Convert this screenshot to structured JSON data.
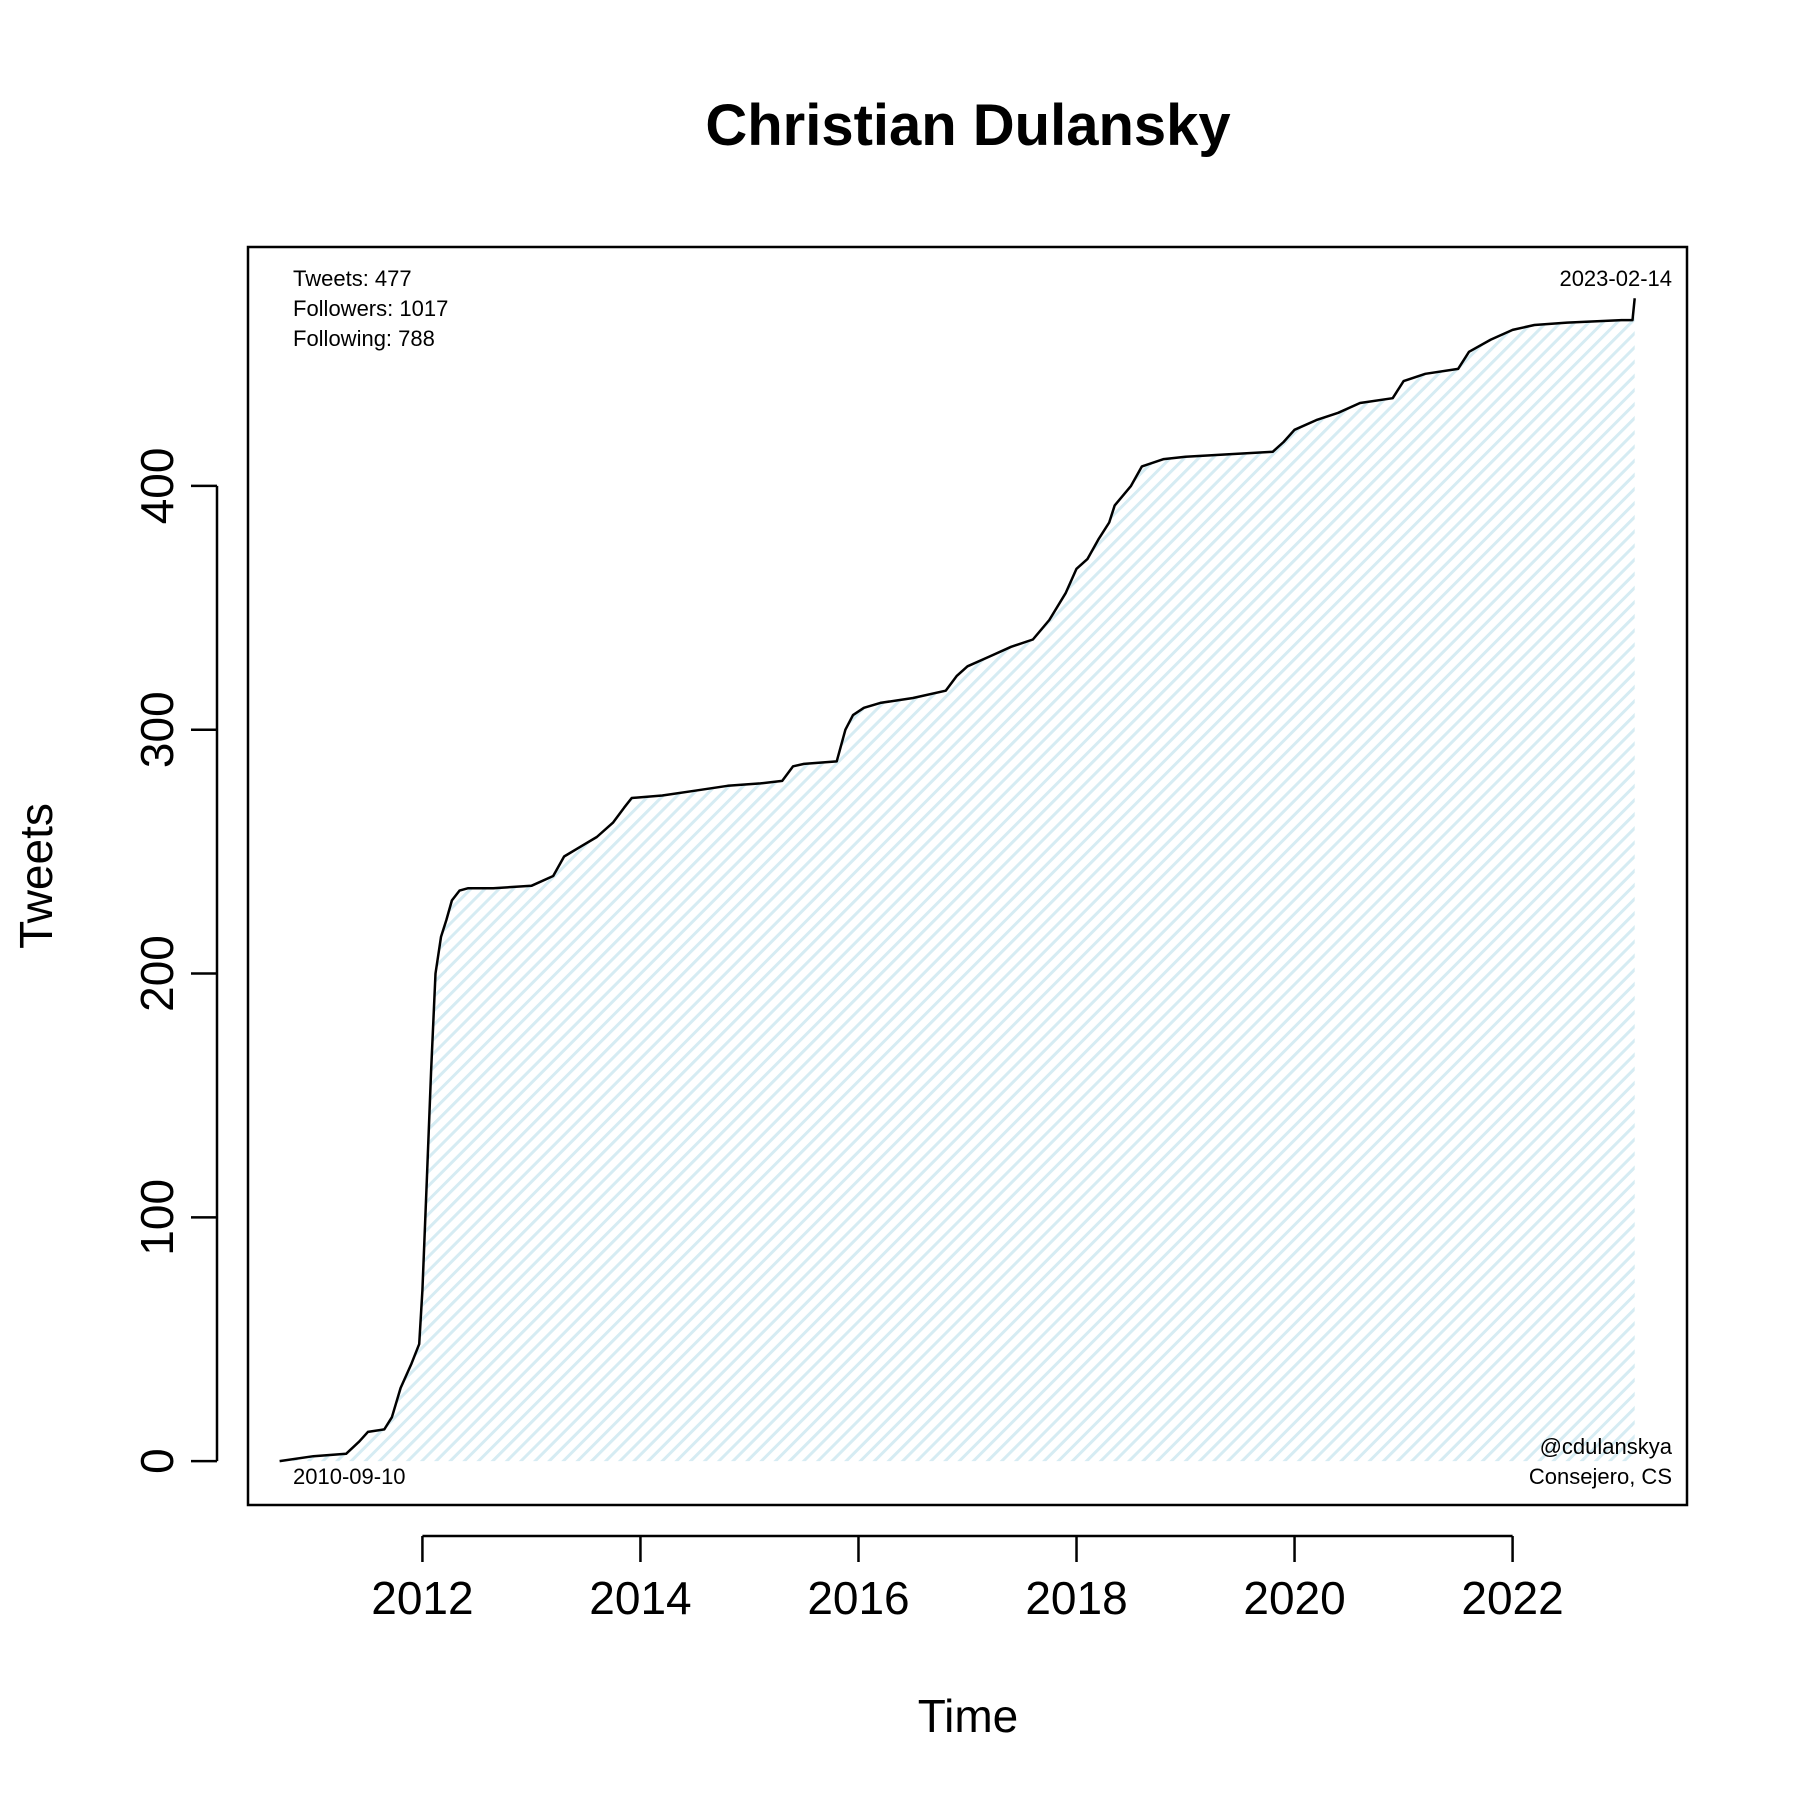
{
  "chart_data": {
    "type": "area",
    "title": "Christian Dulansky",
    "xlabel": "Time",
    "ylabel": "Tweets",
    "xlim": [
      2010.4,
      2023.6
    ],
    "ylim": [
      -18,
      498
    ],
    "x_ticks": [
      2012,
      2014,
      2016,
      2018,
      2020,
      2022
    ],
    "y_ticks": [
      0,
      100,
      200,
      300,
      400
    ],
    "fill_color": "#e8f4f8",
    "line_color": "#000000",
    "grid": false,
    "x": [
      2010.69,
      2011.0,
      2011.3,
      2011.42,
      2011.5,
      2011.65,
      2011.72,
      2011.8,
      2011.9,
      2011.97,
      2012.0,
      2012.04,
      2012.08,
      2012.12,
      2012.17,
      2012.22,
      2012.27,
      2012.34,
      2012.42,
      2012.55,
      2012.65,
      2013.0,
      2013.2,
      2013.3,
      2013.45,
      2013.6,
      2013.75,
      2013.85,
      2013.92,
      2014.2,
      2014.5,
      2014.8,
      2015.1,
      2015.3,
      2015.4,
      2015.5,
      2015.8,
      2015.88,
      2015.95,
      2016.05,
      2016.2,
      2016.5,
      2016.8,
      2016.9,
      2017.0,
      2017.2,
      2017.4,
      2017.6,
      2017.75,
      2017.9,
      2018.0,
      2018.1,
      2018.2,
      2018.3,
      2018.35,
      2018.5,
      2018.6,
      2018.8,
      2019.0,
      2019.4,
      2019.8,
      2019.9,
      2020.0,
      2020.2,
      2020.4,
      2020.6,
      2020.9,
      2021.0,
      2021.2,
      2021.5,
      2021.6,
      2021.8,
      2022.0,
      2022.2,
      2022.5,
      2023.0,
      2023.1,
      2023.12
    ],
    "values": [
      0,
      2,
      3,
      8,
      12,
      13,
      18,
      30,
      40,
      48,
      70,
      115,
      160,
      200,
      215,
      222,
      230,
      234,
      235,
      235,
      235,
      236,
      240,
      248,
      252,
      256,
      262,
      268,
      272,
      273,
      275,
      277,
      278,
      279,
      285,
      286,
      287,
      300,
      306,
      309,
      311,
      313,
      316,
      322,
      326,
      330,
      334,
      337,
      345,
      356,
      366,
      370,
      378,
      385,
      392,
      400,
      408,
      411,
      412,
      413,
      414,
      418,
      423,
      427,
      430,
      434,
      436,
      443,
      446,
      448,
      455,
      460,
      464,
      466,
      467,
      468,
      468,
      477
    ],
    "annotations": {
      "stats": [
        "Tweets: 477",
        "Followers: 1017",
        "Following: 788"
      ],
      "start_date": "2010-09-10",
      "end_date": "2023-02-14",
      "handle": "@cdulanskya",
      "role": "Consejero, CS"
    }
  }
}
